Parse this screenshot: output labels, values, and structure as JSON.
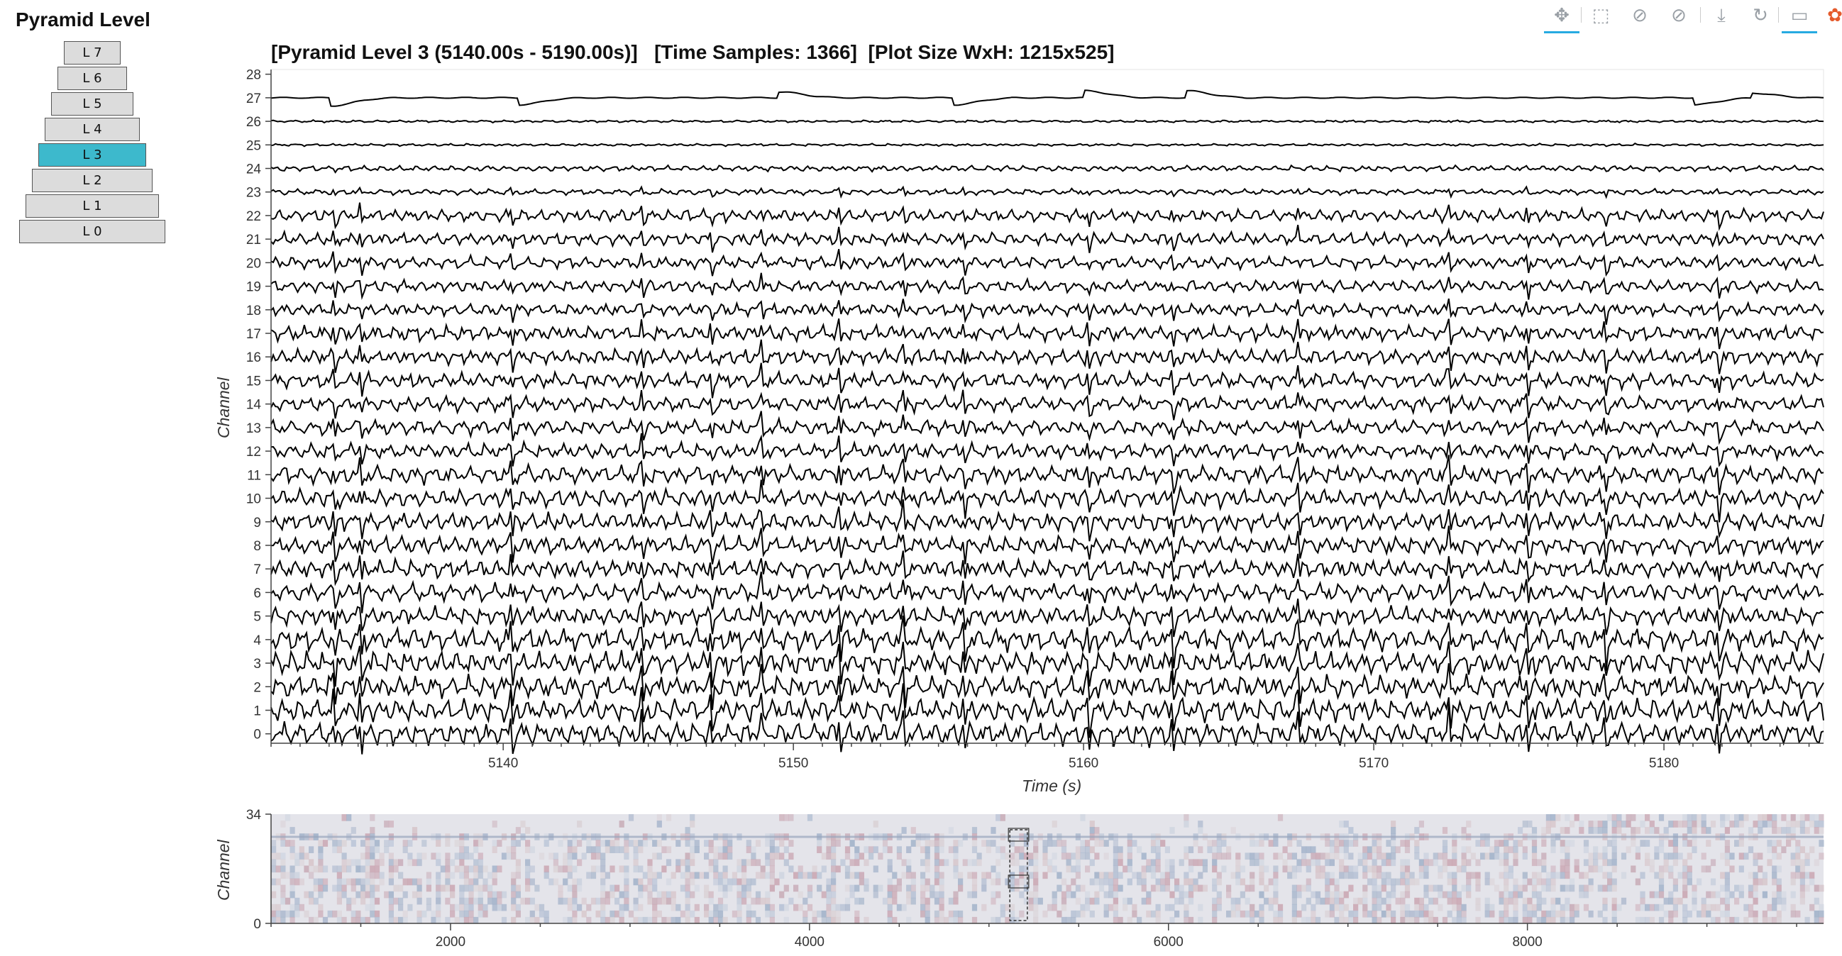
{
  "pyramid": {
    "title": "Pyramid Level",
    "levels": [
      "L 7",
      "L 6",
      "L 5",
      "L 4",
      "L 3",
      "L 2",
      "L 1",
      "L 0"
    ],
    "selected": "L 3"
  },
  "toolbar": {
    "tools": [
      {
        "name": "pan-tool",
        "icon": "move-arrows-icon",
        "active": true
      },
      {
        "name": "box-zoom-tool",
        "icon": "box-zoom-icon",
        "active": false
      },
      {
        "name": "wheel-zoom-x-tool",
        "icon": "wheel-zoom-icon",
        "active": false
      },
      {
        "name": "wheel-zoom-y-tool",
        "icon": "wheel-zoom-icon",
        "active": false
      },
      {
        "name": "save-tool",
        "icon": "download-icon",
        "active": false
      },
      {
        "name": "reset-tool",
        "icon": "reset-icon",
        "active": false
      },
      {
        "name": "hover-tool",
        "icon": "comment-icon",
        "active": true
      },
      {
        "name": "bokeh-logo",
        "icon": "bokeh-logo-icon",
        "active": false
      }
    ],
    "glyphs": [
      "✥",
      "⬚",
      "⊘",
      "⊘",
      "⤓",
      "↻",
      "▭",
      "✿"
    ]
  },
  "main_plot": {
    "title": "[Pyramid Level 3 (5140.00s - 5190.00s)]   [Time Samples: 1366]  [Plot Size WxH: 1215x525]",
    "xlabel": "Time (s)",
    "ylabel": "Channel"
  },
  "overview_plot": {
    "ylabel": "Channel"
  },
  "chart_data": [
    {
      "type": "line",
      "name": "stacked-channel-traces",
      "xlim": [
        5132,
        5185.5
      ],
      "ylim": [
        -0.4,
        28.2
      ],
      "x_ticks": [
        5140,
        5150,
        5160,
        5170,
        5180
      ],
      "y_ticks": [
        0,
        1,
        2,
        3,
        4,
        5,
        6,
        7,
        8,
        9,
        10,
        11,
        12,
        13,
        14,
        15,
        16,
        17,
        18,
        19,
        20,
        21,
        22,
        23,
        24,
        25,
        26,
        27,
        28
      ],
      "channels": 28,
      "time_samples": 1366,
      "grid": false
    },
    {
      "type": "heatmap",
      "name": "overview-minimap",
      "xlim": [
        1000,
        9650
      ],
      "ylim": [
        0,
        34
      ],
      "x_ticks": [
        2000,
        4000,
        6000,
        8000
      ],
      "y_ticks": [
        0,
        34
      ],
      "selection_x": [
        5140,
        5190
      ]
    }
  ],
  "colors": {
    "selected_level": "#3db9cc",
    "trace": "#000000",
    "tool_active": "#26aae1"
  }
}
